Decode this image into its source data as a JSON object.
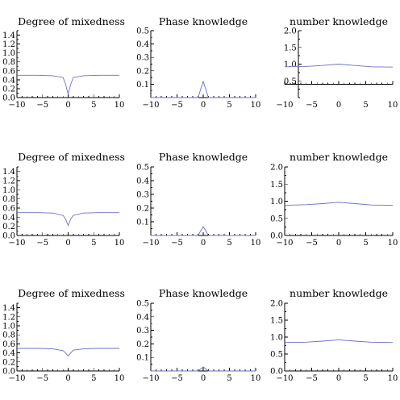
{
  "chart_data": [
    {
      "type": "line",
      "title": "Degree of mixedness",
      "xlim": [
        -10,
        10
      ],
      "ylim": [
        0,
        1.5
      ],
      "xticks": [
        "−10",
        "−5",
        "0",
        "5",
        "10"
      ],
      "yticks": [
        "0.0",
        "0.2",
        "0.4",
        "0.6",
        "0.8",
        "1.0",
        "1.2",
        "1.4"
      ],
      "x": [
        -10,
        -6,
        -3,
        -1,
        -0.5,
        0,
        0.5,
        1,
        3,
        6,
        10
      ],
      "y": [
        0.5,
        0.5,
        0.49,
        0.45,
        0.3,
        0.08,
        0.3,
        0.45,
        0.49,
        0.5,
        0.5
      ]
    },
    {
      "type": "line",
      "title": "Phase knowledge",
      "xlim": [
        -10,
        10
      ],
      "ylim": [
        0,
        0.5
      ],
      "xticks": [
        "−10",
        "−5",
        "0",
        "5",
        "10"
      ],
      "yticks": [
        "0.1",
        "0.2",
        "0.3",
        "0.4",
        "0.5"
      ],
      "x": [
        -10,
        -1,
        0,
        1,
        10
      ],
      "y": [
        0,
        0,
        0.12,
        0,
        0
      ]
    },
    {
      "type": "line",
      "title": "number knowledge",
      "xlim": [
        -10,
        10
      ],
      "ylim": [
        0,
        2.0
      ],
      "xticks": [
        "−10",
        "−5",
        "0",
        "5",
        "10"
      ],
      "yticks": [
        "0.5",
        "1.0",
        "1.5",
        "2.0"
      ],
      "x": [
        -10,
        -6,
        -3,
        0,
        3,
        6,
        10
      ],
      "y": [
        0.92,
        0.93,
        0.96,
        1.0,
        0.96,
        0.92,
        0.91
      ]
    },
    {
      "type": "line",
      "title": "Degree of mixedness",
      "xlim": [
        -10,
        10
      ],
      "ylim": [
        0,
        1.5
      ],
      "xticks": [
        "−10",
        "−5",
        "0",
        "5",
        "10"
      ],
      "yticks": [
        "0.0",
        "0.2",
        "0.4",
        "0.6",
        "0.8",
        "1.0",
        "1.2",
        "1.4"
      ],
      "x": [
        -10,
        -6,
        -3,
        -1,
        -0.5,
        0,
        0.5,
        1,
        3,
        6,
        10
      ],
      "y": [
        0.5,
        0.5,
        0.49,
        0.44,
        0.36,
        0.22,
        0.36,
        0.44,
        0.49,
        0.5,
        0.5
      ]
    },
    {
      "type": "line",
      "title": "Phase knowledge",
      "xlim": [
        -10,
        10
      ],
      "ylim": [
        0,
        0.5
      ],
      "xticks": [
        "−10",
        "−5",
        "0",
        "5",
        "10"
      ],
      "yticks": [
        "0.1",
        "0.2",
        "0.3",
        "0.4",
        "0.5"
      ],
      "x": [
        -10,
        -1,
        0,
        1,
        10
      ],
      "y": [
        0,
        0,
        0.065,
        0,
        0
      ]
    },
    {
      "type": "line",
      "title": "number knowledge",
      "xlim": [
        -10,
        10
      ],
      "ylim": [
        0,
        2.0
      ],
      "xticks": [
        "−10",
        "−5",
        "0",
        "5",
        "10"
      ],
      "yticks": [
        "0.0",
        "0.5",
        "1.0",
        "1.5",
        "2.0"
      ],
      "x": [
        -10,
        -6,
        -3,
        0,
        3,
        6,
        10
      ],
      "y": [
        0.88,
        0.9,
        0.93,
        0.97,
        0.93,
        0.89,
        0.88
      ]
    },
    {
      "type": "line",
      "title": "Degree of mixedness",
      "xlim": [
        -10,
        10
      ],
      "ylim": [
        0,
        1.5
      ],
      "xticks": [
        "−10",
        "−5",
        "0",
        "5",
        "10"
      ],
      "yticks": [
        "0.0",
        "0.2",
        "0.4",
        "0.6",
        "0.8",
        "1.0",
        "1.2",
        "1.4"
      ],
      "x": [
        -10,
        -6,
        -3,
        -1,
        -0.5,
        0,
        0.5,
        1,
        3,
        6,
        10
      ],
      "y": [
        0.5,
        0.5,
        0.49,
        0.45,
        0.4,
        0.33,
        0.4,
        0.46,
        0.49,
        0.5,
        0.5
      ]
    },
    {
      "type": "line",
      "title": "Phase knowledge",
      "xlim": [
        -10,
        10
      ],
      "ylim": [
        0,
        0.5
      ],
      "xticks": [
        "−10",
        "−5",
        "0",
        "5",
        "10"
      ],
      "yticks": [
        "0.1",
        "0.2",
        "0.3",
        "0.4",
        "0.5"
      ],
      "x": [
        -10,
        -1,
        0,
        1,
        10
      ],
      "y": [
        0,
        0,
        0.03,
        0,
        0
      ]
    },
    {
      "type": "line",
      "title": "number knowledge",
      "xlim": [
        -10,
        10
      ],
      "ylim": [
        0,
        2.0
      ],
      "xticks": [
        "−10",
        "−5",
        "0",
        "5",
        "10"
      ],
      "yticks": [
        "0.0",
        "0.5",
        "1.0",
        "1.5",
        "2.0"
      ],
      "x": [
        -10,
        -6,
        -3,
        0,
        3,
        6,
        10
      ],
      "y": [
        0.84,
        0.85,
        0.88,
        0.92,
        0.88,
        0.85,
        0.84
      ]
    }
  ]
}
